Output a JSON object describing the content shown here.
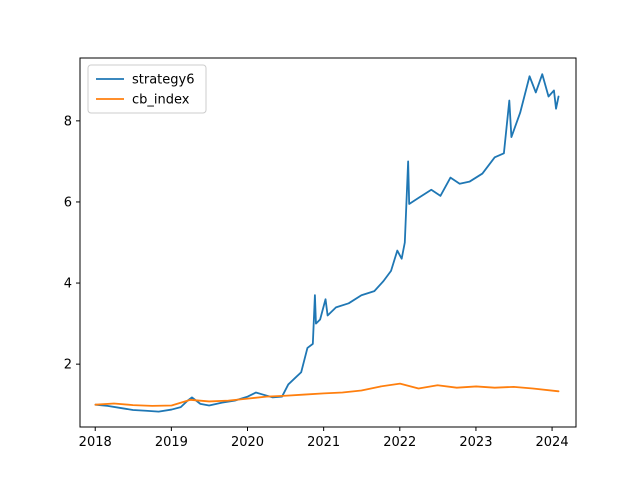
{
  "chart_data": {
    "type": "line",
    "title": "",
    "xlabel": "",
    "ylabel": "",
    "x_axis": {
      "type": "date",
      "range": [
        "2017-10-20",
        "2024-04-25"
      ],
      "ticks": [
        "2018",
        "2019",
        "2020",
        "2021",
        "2022",
        "2023",
        "2024"
      ]
    },
    "y_axis": {
      "range": [
        0.45,
        9.55
      ],
      "ticks": [
        "2",
        "4",
        "6",
        "8"
      ]
    },
    "grid": false,
    "legend": {
      "position": "top-left"
    },
    "series": [
      {
        "name": "strategy6",
        "color": "#1f77b4",
        "points": [
          [
            "2018-01-02",
            1.0
          ],
          [
            "2018-03-01",
            0.97
          ],
          [
            "2018-05-01",
            0.92
          ],
          [
            "2018-07-01",
            0.87
          ],
          [
            "2018-09-01",
            0.85
          ],
          [
            "2018-11-01",
            0.83
          ],
          [
            "2019-01-02",
            0.88
          ],
          [
            "2019-02-15",
            0.94
          ],
          [
            "2019-03-20",
            1.1
          ],
          [
            "2019-04-10",
            1.18
          ],
          [
            "2019-05-20",
            1.02
          ],
          [
            "2019-07-01",
            0.98
          ],
          [
            "2019-09-01",
            1.05
          ],
          [
            "2019-11-01",
            1.1
          ],
          [
            "2020-01-02",
            1.2
          ],
          [
            "2020-02-10",
            1.3
          ],
          [
            "2020-03-15",
            1.25
          ],
          [
            "2020-05-01",
            1.18
          ],
          [
            "2020-06-15",
            1.2
          ],
          [
            "2020-07-15",
            1.5
          ],
          [
            "2020-08-15",
            1.65
          ],
          [
            "2020-09-15",
            1.8
          ],
          [
            "2020-10-15",
            2.4
          ],
          [
            "2020-11-10",
            2.5
          ],
          [
            "2020-11-20",
            3.7
          ],
          [
            "2020-11-25",
            3.0
          ],
          [
            "2020-12-15",
            3.1
          ],
          [
            "2021-01-10",
            3.6
          ],
          [
            "2021-01-20",
            3.2
          ],
          [
            "2021-03-01",
            3.4
          ],
          [
            "2021-05-01",
            3.5
          ],
          [
            "2021-07-01",
            3.7
          ],
          [
            "2021-09-01",
            3.8
          ],
          [
            "2021-10-15",
            4.05
          ],
          [
            "2021-11-20",
            4.3
          ],
          [
            "2021-12-20",
            4.8
          ],
          [
            "2022-01-10",
            4.6
          ],
          [
            "2022-01-25",
            5.0
          ],
          [
            "2022-02-10",
            7.0
          ],
          [
            "2022-02-15",
            5.95
          ],
          [
            "2022-04-01",
            6.1
          ],
          [
            "2022-06-01",
            6.3
          ],
          [
            "2022-07-15",
            6.15
          ],
          [
            "2022-09-01",
            6.6
          ],
          [
            "2022-10-15",
            6.45
          ],
          [
            "2022-12-01",
            6.5
          ],
          [
            "2023-02-01",
            6.7
          ],
          [
            "2023-04-01",
            7.1
          ],
          [
            "2023-05-15",
            7.2
          ],
          [
            "2023-06-10",
            8.5
          ],
          [
            "2023-06-20",
            7.6
          ],
          [
            "2023-08-01",
            8.2
          ],
          [
            "2023-09-15",
            9.1
          ],
          [
            "2023-10-15",
            8.7
          ],
          [
            "2023-11-15",
            9.15
          ],
          [
            "2023-12-15",
            8.6
          ],
          [
            "2024-01-10",
            8.75
          ],
          [
            "2024-01-20",
            8.3
          ],
          [
            "2024-02-01",
            8.6
          ]
        ]
      },
      {
        "name": "cb_index",
        "color": "#ff7f0e",
        "points": [
          [
            "2018-01-02",
            1.0
          ],
          [
            "2018-04-01",
            1.03
          ],
          [
            "2018-07-01",
            0.99
          ],
          [
            "2018-10-01",
            0.97
          ],
          [
            "2019-01-02",
            0.98
          ],
          [
            "2019-04-01",
            1.12
          ],
          [
            "2019-07-01",
            1.08
          ],
          [
            "2019-10-01",
            1.1
          ],
          [
            "2020-01-02",
            1.15
          ],
          [
            "2020-04-01",
            1.2
          ],
          [
            "2020-07-01",
            1.22
          ],
          [
            "2020-10-01",
            1.25
          ],
          [
            "2021-01-02",
            1.28
          ],
          [
            "2021-04-01",
            1.3
          ],
          [
            "2021-07-01",
            1.35
          ],
          [
            "2021-10-01",
            1.45
          ],
          [
            "2022-01-02",
            1.52
          ],
          [
            "2022-04-01",
            1.4
          ],
          [
            "2022-07-01",
            1.48
          ],
          [
            "2022-10-01",
            1.42
          ],
          [
            "2023-01-02",
            1.45
          ],
          [
            "2023-04-01",
            1.42
          ],
          [
            "2023-07-01",
            1.44
          ],
          [
            "2023-10-01",
            1.4
          ],
          [
            "2024-02-01",
            1.33
          ]
        ]
      }
    ]
  }
}
